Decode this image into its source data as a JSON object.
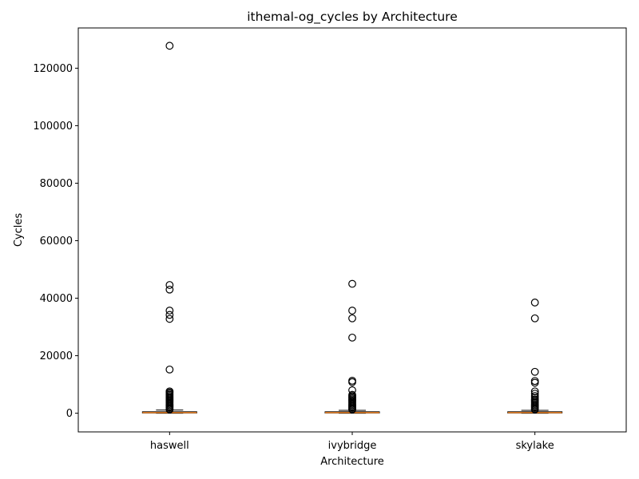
{
  "chart_data": {
    "type": "box",
    "title": "ithemal-og_cycles by Architecture",
    "xlabel": "Architecture",
    "ylabel": "Cycles",
    "ylim": [
      -6500,
      134000
    ],
    "yticks": [
      0,
      20000,
      40000,
      60000,
      80000,
      100000,
      120000
    ],
    "grid": false,
    "categories": [
      "haswell",
      "ivybridge",
      "skylake"
    ],
    "colors": {
      "box": "#000000",
      "median": "#ff7f0e",
      "flier": "#000000"
    },
    "series": [
      {
        "category": "haswell",
        "q1": 80,
        "median": 200,
        "q3": 500,
        "whisker_low": 0,
        "whisker_high": 1100,
        "fliers": [
          127800,
          44600,
          43000,
          35700,
          34200,
          32800,
          15200,
          7600,
          7200,
          6800,
          6400,
          6000,
          5600,
          5200,
          4800,
          4400,
          4000,
          3600,
          3200,
          2800,
          2400,
          2000,
          1600,
          1300
        ]
      },
      {
        "category": "ivybridge",
        "q1": 80,
        "median": 200,
        "q3": 500,
        "whisker_low": 0,
        "whisker_high": 1000,
        "fliers": [
          45000,
          35700,
          33000,
          26300,
          11300,
          10800,
          8000,
          6400,
          6000,
          5600,
          5200,
          4800,
          4400,
          4000,
          3600,
          3200,
          2800,
          2400,
          2000,
          1600,
          1300
        ]
      },
      {
        "category": "skylake",
        "q1": 80,
        "median": 200,
        "q3": 500,
        "whisker_low": 0,
        "whisker_high": 1000,
        "fliers": [
          38500,
          33000,
          14400,
          11200,
          10600,
          7600,
          6800,
          6000,
          5400,
          4800,
          4400,
          4000,
          3600,
          3200,
          2800,
          2400,
          2000,
          1600,
          1300
        ]
      }
    ]
  }
}
